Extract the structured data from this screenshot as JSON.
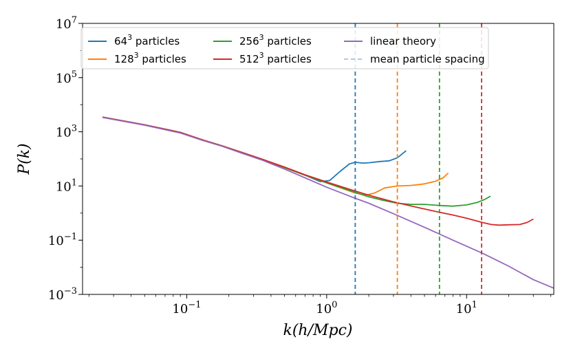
{
  "chart_data": {
    "type": "line",
    "xscale": "log",
    "yscale": "log",
    "xlim": [
      0.018,
      42
    ],
    "ylim": [
      0.001,
      10000000
    ],
    "xlabel": "k(h/Mpc)",
    "ylabel": "P(k)",
    "x_major_ticks": [
      {
        "value": 0.1,
        "base": "10",
        "exp": "−1"
      },
      {
        "value": 1,
        "base": "10",
        "exp": "0"
      },
      {
        "value": 10,
        "base": "10",
        "exp": "1"
      }
    ],
    "y_major_ticks": [
      {
        "value": 0.001,
        "base": "10",
        "exp": "−3"
      },
      {
        "value": 0.1,
        "base": "10",
        "exp": "−1"
      },
      {
        "value": 10,
        "base": "10",
        "exp": "1"
      },
      {
        "value": 1000,
        "base": "10",
        "exp": "3"
      },
      {
        "value": 100000,
        "base": "10",
        "exp": "5"
      },
      {
        "value": 10000000,
        "base": "10",
        "exp": "7"
      }
    ],
    "legend_position": "top",
    "series": [
      {
        "name": "64³ particles",
        "legend_main": "64",
        "legend_sup": "3",
        "legend_suffix": " particles",
        "color": "#1f77b4",
        "points": [
          [
            0.025,
            3500
          ],
          [
            0.05,
            1800
          ],
          [
            0.09,
            950
          ],
          [
            0.13,
            500
          ],
          [
            0.18,
            300
          ],
          [
            0.25,
            170
          ],
          [
            0.35,
            95
          ],
          [
            0.5,
            48
          ],
          [
            0.7,
            25
          ],
          [
            0.9,
            14.5
          ],
          [
            1.05,
            16
          ],
          [
            1.25,
            35
          ],
          [
            1.45,
            65
          ],
          [
            1.6,
            75
          ],
          [
            1.8,
            70
          ],
          [
            2.0,
            72
          ],
          [
            2.4,
            80
          ],
          [
            2.8,
            85
          ],
          [
            3.2,
            110
          ],
          [
            3.7,
            200
          ]
        ]
      },
      {
        "name": "128³ particles",
        "legend_main": "128",
        "legend_sup": "3",
        "legend_suffix": " particles",
        "color": "#ff7f0e",
        "points": [
          [
            0.025,
            3500
          ],
          [
            0.05,
            1800
          ],
          [
            0.09,
            950
          ],
          [
            0.13,
            500
          ],
          [
            0.18,
            300
          ],
          [
            0.25,
            170
          ],
          [
            0.35,
            95
          ],
          [
            0.5,
            48
          ],
          [
            0.7,
            25
          ],
          [
            1.0,
            13
          ],
          [
            1.3,
            8
          ],
          [
            1.6,
            5.5
          ],
          [
            1.9,
            4.6
          ],
          [
            2.2,
            5.5
          ],
          [
            2.6,
            8.5
          ],
          [
            3.2,
            10
          ],
          [
            4.0,
            10.5
          ],
          [
            5.0,
            12
          ],
          [
            6.0,
            15
          ],
          [
            6.8,
            20
          ],
          [
            7.4,
            30
          ]
        ]
      },
      {
        "name": "256³ particles",
        "legend_main": "256",
        "legend_sup": "3",
        "legend_suffix": " particles",
        "color": "#2ca02c",
        "points": [
          [
            0.025,
            3500
          ],
          [
            0.05,
            1800
          ],
          [
            0.09,
            950
          ],
          [
            0.13,
            500
          ],
          [
            0.18,
            300
          ],
          [
            0.25,
            170
          ],
          [
            0.35,
            95
          ],
          [
            0.5,
            48
          ],
          [
            0.7,
            25
          ],
          [
            1.0,
            13
          ],
          [
            1.5,
            6.5
          ],
          [
            2.0,
            4.0
          ],
          [
            2.5,
            3.0
          ],
          [
            3.2,
            2.3
          ],
          [
            4.0,
            2.1
          ],
          [
            5.0,
            2.1
          ],
          [
            6.5,
            1.9
          ],
          [
            8.0,
            1.8
          ],
          [
            10.0,
            2.0
          ],
          [
            12.0,
            2.5
          ],
          [
            13.5,
            3.2
          ],
          [
            14.8,
            4.2
          ]
        ]
      },
      {
        "name": "512³ particles",
        "legend_main": "512",
        "legend_sup": "3",
        "legend_suffix": " particles",
        "color": "#d62728",
        "points": [
          [
            0.025,
            3500
          ],
          [
            0.05,
            1800
          ],
          [
            0.09,
            950
          ],
          [
            0.13,
            500
          ],
          [
            0.18,
            300
          ],
          [
            0.25,
            170
          ],
          [
            0.35,
            95
          ],
          [
            0.5,
            50
          ],
          [
            0.7,
            26
          ],
          [
            1.0,
            14
          ],
          [
            1.5,
            7.2
          ],
          [
            2.0,
            4.6
          ],
          [
            3.0,
            2.6
          ],
          [
            4.5,
            1.6
          ],
          [
            6.0,
            1.15
          ],
          [
            8.0,
            0.85
          ],
          [
            10.0,
            0.65
          ],
          [
            13.0,
            0.45
          ],
          [
            15.0,
            0.38
          ],
          [
            17.0,
            0.36
          ],
          [
            20.0,
            0.37
          ],
          [
            24.0,
            0.38
          ],
          [
            27.0,
            0.45
          ],
          [
            30.0,
            0.6
          ]
        ]
      },
      {
        "name": "linear theory",
        "legend_main": "linear theory",
        "legend_sup": "",
        "legend_suffix": "",
        "color": "#9467bd",
        "points": [
          [
            0.025,
            3400
          ],
          [
            0.05,
            1750
          ],
          [
            0.09,
            900
          ],
          [
            0.13,
            480
          ],
          [
            0.18,
            290
          ],
          [
            0.25,
            160
          ],
          [
            0.35,
            88
          ],
          [
            0.5,
            42
          ],
          [
            0.7,
            20
          ],
          [
            1.0,
            9
          ],
          [
            1.5,
            4.0
          ],
          [
            2.0,
            2.3
          ],
          [
            3.0,
            0.95
          ],
          [
            5.0,
            0.3
          ],
          [
            8.0,
            0.1
          ],
          [
            13.0,
            0.033
          ],
          [
            20.0,
            0.011
          ],
          [
            30.0,
            0.0035
          ],
          [
            42.0,
            0.0017
          ]
        ]
      }
    ],
    "vertical_lines": [
      {
        "name": "mean particle spacing 64³",
        "x": 1.6,
        "color": "#1f77b4"
      },
      {
        "name": "mean particle spacing 128³",
        "x": 3.2,
        "color": "#ff7f0e"
      },
      {
        "name": "mean particle spacing 256³",
        "x": 6.4,
        "color": "#2ca02c"
      },
      {
        "name": "mean particle spacing 512³",
        "x": 12.8,
        "color": "#d62728"
      }
    ],
    "legend_extra": {
      "label": "mean particle spacing",
      "color": "#aec7e8"
    }
  }
}
